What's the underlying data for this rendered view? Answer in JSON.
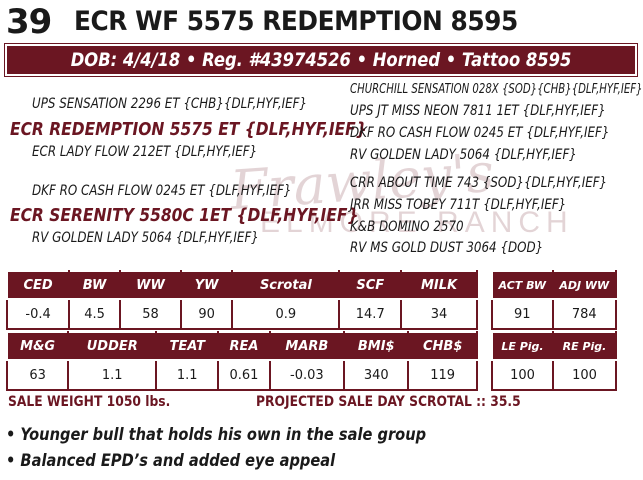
{
  "header": {
    "lot_number": "39",
    "bull_name": "ECR WF 5575 REDEMPTION 8595",
    "info_line": "DOB: 4/4/18 • Reg. #43974526 • Horned • Tattoo 8595"
  },
  "watermark": {
    "script_text": "Frawley's",
    "ranch_text": "ELMORE  RANCH"
  },
  "pedigree": {
    "sire": {
      "sire_sire": "UPS SENSATION 2296 ET {CHB}{DLF,HYF,IEF}",
      "name": "ECR REDEMPTION 5575 ET {DLF,HYF,IEF}",
      "sire_dam": "ECR LADY FLOW 212ET {DLF,HYF,IEF}",
      "sss": "CHURCHILL SENSATION 028X {SOD}{CHB}{DLF,HYF,IEF}",
      "ssd": "UPS JT MISS NEON 7811 1ET {DLF,HYF,IEF}",
      "sds": "DKF RO CASH FLOW 0245 ET {DLF,HYF,IEF}",
      "sdd": "RV GOLDEN LADY 5064 {DLF,HYF,IEF}"
    },
    "dam": {
      "dam_sire": "DKF RO CASH FLOW 0245 ET {DLF,HYF,IEF}",
      "name": "ECR SERENITY 5580C 1ET {DLF,HYF,IEF}",
      "dam_dam": "RV GOLDEN LADY 5064 {DLF,HYF,IEF}",
      "dss": "CRR ABOUT TIME 743 {SOD}{DLF,HYF,IEF}",
      "dsd": "JRR MISS TOBEY 711T {DLF,HYF,IEF}",
      "dds": "K&B DOMINO 2570",
      "ddd": "RV MS GOLD DUST 3064 {DOD}"
    }
  },
  "epd_row1": {
    "headers": [
      "CED",
      "BW",
      "WW",
      "YW",
      "Scrotal",
      "SCF",
      "MILK"
    ],
    "values": [
      "-0.4",
      "4.5",
      "58",
      "90",
      "0.9",
      "14.7",
      "34"
    ]
  },
  "epd_row2": {
    "headers": [
      "M&G",
      "UDDER",
      "TEAT",
      "REA",
      "MARB",
      "BMI$",
      "CHB$"
    ],
    "values": [
      "63",
      "1.1",
      "1.1",
      "0.61",
      "-0.03",
      "340",
      "119"
    ]
  },
  "actual_row1": {
    "headers": [
      "ACT BW",
      "ADJ WW"
    ],
    "values": [
      "91",
      "784"
    ]
  },
  "actual_row2": {
    "headers": [
      "LE Pig.",
      "RE Pig."
    ],
    "values": [
      "100",
      "100"
    ]
  },
  "sale": {
    "weight": "SALE WEIGHT 1050 lbs.",
    "scrotal": "PROJECTED SALE DAY SCROTAL :: 35.5"
  },
  "notes": [
    "• Younger bull that holds his own in the sale group",
    "• Balanced EPD’s and added eye appeal"
  ],
  "colors": {
    "maroon": "#6b1622",
    "text": "#1a1a1a",
    "background": "#ffffff"
  }
}
